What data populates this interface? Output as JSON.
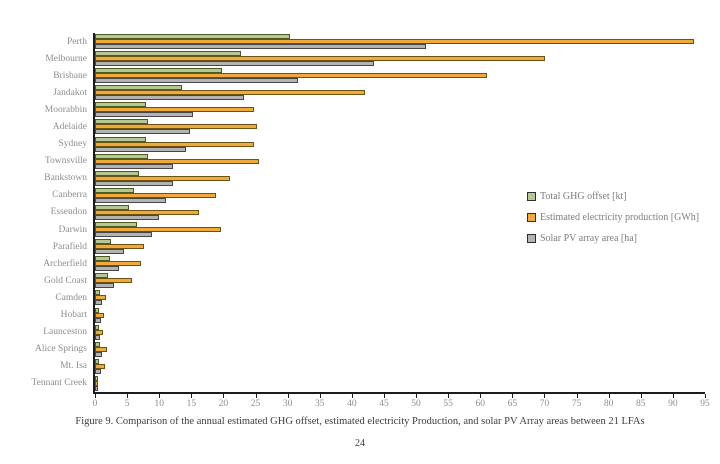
{
  "chart_data": {
    "type": "bar",
    "orientation": "horizontal",
    "title": "",
    "xlabel": "",
    "ylabel": "",
    "xlim": [
      0,
      95
    ],
    "x_ticks": [
      0,
      5,
      10,
      15,
      20,
      25,
      30,
      35,
      40,
      45,
      50,
      55,
      60,
      65,
      70,
      75,
      80,
      85,
      90,
      95
    ],
    "grid": false,
    "legend_position": "middle-right",
    "categories": [
      "Perth",
      "Melbourne",
      "Brisbane",
      "Jandakot",
      "Moorabbin",
      "Adelaide",
      "Sydney",
      "Townsville",
      "Bankstown",
      "Canberra",
      "Essendon",
      "Darwin",
      "Parafield",
      "Archerfield",
      "Gold Coast",
      "Camden",
      "Hobart",
      "Launceston",
      "Alice Springs",
      "Mt. Isa",
      "Tennant Creek"
    ],
    "series": [
      {
        "name": "Total GHG offset [kt]",
        "fill_color": "#b5c794",
        "border_color": "#4f5a22",
        "values": [
          30.3,
          22.7,
          19.8,
          13.6,
          8.0,
          8.2,
          8.0,
          8.2,
          6.8,
          6.0,
          5.3,
          6.5,
          2.5,
          2.3,
          2.0,
          0.8,
          0.6,
          0.6,
          0.8,
          0.6,
          0.2
        ]
      },
      {
        "name": "Estimated electricity production [GWh]",
        "fill_color": "#efaa3e",
        "border_color": "#6b5413",
        "values": [
          93.3,
          70.1,
          61.0,
          42.0,
          24.8,
          25.3,
          24.8,
          25.6,
          21.0,
          18.8,
          16.2,
          19.6,
          7.7,
          7.1,
          5.7,
          1.7,
          1.4,
          1.3,
          1.9,
          1.6,
          0.4
        ]
      },
      {
        "name": "Solar PV array area [ha]",
        "fill_color": "#b3b3b3",
        "border_color": "#474747",
        "values": [
          51.6,
          43.5,
          31.6,
          23.2,
          15.3,
          14.8,
          14.1,
          12.2,
          12.1,
          11.0,
          10.0,
          8.9,
          4.5,
          3.7,
          3.0,
          1.1,
          0.9,
          0.8,
          1.1,
          0.9,
          0.2
        ]
      }
    ]
  },
  "caption": "Figure 9. Comparison of the annual estimated GHG offset, estimated electricity Production, and solar PV Array areas between 21 LFAs",
  "page_number": "24"
}
